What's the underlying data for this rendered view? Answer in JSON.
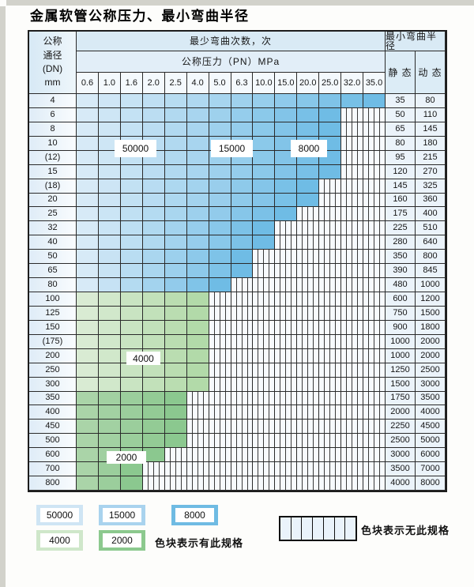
{
  "page": {
    "title": "金属软管公称压力、最小弯曲半径"
  },
  "table": {
    "header": {
      "dn_label": "公称\n通径\n(DN)\nmm",
      "cycles_label": "最少弯曲次数，次",
      "pressure_label": "公称压力（PN）MPa",
      "radius_label": "最小弯曲半径",
      "static_label": "静 态",
      "dynamic_label": "动 态",
      "pressure_columns": [
        "0.6",
        "1.0",
        "1.6",
        "2.0",
        "2.5",
        "4.0",
        "5.0",
        "6.3",
        "10.0",
        "15.0",
        "20.0",
        "25.0",
        "32.0",
        "35.0"
      ]
    },
    "rows": [
      {
        "dn": "4",
        "colored": 14,
        "zone": "blue",
        "static": "35",
        "dynamic": "80"
      },
      {
        "dn": "6",
        "colored": 12,
        "zone": "blue",
        "static": "50",
        "dynamic": "110"
      },
      {
        "dn": "8",
        "colored": 12,
        "zone": "blue",
        "static": "65",
        "dynamic": "145"
      },
      {
        "dn": "10",
        "colored": 12,
        "zone": "blue",
        "static": "80",
        "dynamic": "180"
      },
      {
        "dn": "(12)",
        "colored": 12,
        "zone": "blue",
        "static": "95",
        "dynamic": "215"
      },
      {
        "dn": "15",
        "colored": 12,
        "zone": "blue",
        "static": "120",
        "dynamic": "270"
      },
      {
        "dn": "(18)",
        "colored": 11,
        "zone": "blue",
        "static": "145",
        "dynamic": "325"
      },
      {
        "dn": "20",
        "colored": 11,
        "zone": "blue",
        "static": "160",
        "dynamic": "360"
      },
      {
        "dn": "25",
        "colored": 10,
        "zone": "blue",
        "static": "175",
        "dynamic": "400"
      },
      {
        "dn": "32",
        "colored": 9,
        "zone": "blue",
        "static": "225",
        "dynamic": "510"
      },
      {
        "dn": "40",
        "colored": 9,
        "zone": "blue",
        "static": "280",
        "dynamic": "640"
      },
      {
        "dn": "50",
        "colored": 8,
        "zone": "blue",
        "static": "350",
        "dynamic": "800"
      },
      {
        "dn": "65",
        "colored": 8,
        "zone": "blue",
        "static": "390",
        "dynamic": "845"
      },
      {
        "dn": "80",
        "colored": 7,
        "zone": "blue",
        "static": "480",
        "dynamic": "1000"
      },
      {
        "dn": "100",
        "colored": 6,
        "zone": "green_4000",
        "static": "600",
        "dynamic": "1200"
      },
      {
        "dn": "125",
        "colored": 6,
        "zone": "green_4000",
        "static": "750",
        "dynamic": "1500"
      },
      {
        "dn": "150",
        "colored": 6,
        "zone": "green_4000",
        "static": "900",
        "dynamic": "1800"
      },
      {
        "dn": "(175)",
        "colored": 6,
        "zone": "green_4000",
        "static": "1000",
        "dynamic": "2000"
      },
      {
        "dn": "200",
        "colored": 6,
        "zone": "green_4000",
        "static": "1000",
        "dynamic": "2000"
      },
      {
        "dn": "250",
        "colored": 6,
        "zone": "green_4000",
        "static": "1250",
        "dynamic": "2500"
      },
      {
        "dn": "300",
        "colored": 6,
        "zone": "green_4000",
        "static": "1500",
        "dynamic": "3000"
      },
      {
        "dn": "350",
        "colored": 5,
        "zone": "green_2000",
        "static": "1750",
        "dynamic": "3500"
      },
      {
        "dn": "400",
        "colored": 5,
        "zone": "green_2000",
        "static": "2000",
        "dynamic": "4000"
      },
      {
        "dn": "450",
        "colored": 5,
        "zone": "green_2000",
        "static": "2250",
        "dynamic": "4500"
      },
      {
        "dn": "500",
        "colored": 5,
        "zone": "green_2000",
        "static": "2500",
        "dynamic": "5000"
      },
      {
        "dn": "600",
        "colored": 4,
        "zone": "green_2000",
        "static": "3000",
        "dynamic": "6000"
      },
      {
        "dn": "700",
        "colored": 3,
        "zone": "green_2000",
        "static": "3500",
        "dynamic": "7000"
      },
      {
        "dn": "800",
        "colored": 3,
        "zone": "green_2000",
        "static": "4000",
        "dynamic": "8000"
      }
    ],
    "region_labels": [
      "50000",
      "15000",
      "8000",
      "4000",
      "2000"
    ]
  },
  "legend": {
    "swatches": [
      {
        "label": "50000",
        "color": "#cfe5f4"
      },
      {
        "label": "15000",
        "color": "#a9d3ee"
      },
      {
        "label": "8000",
        "color": "#6fbbe3"
      },
      {
        "label": "4000",
        "color": "#cfe7ca"
      },
      {
        "label": "2000",
        "color": "#8cc98e"
      }
    ],
    "has_spec_text": "色块表示有此规格",
    "no_spec_text": "色块表示无此规格"
  },
  "colors": {
    "zones": {
      "blue": [
        "#d7eaf7",
        "#6fbce5"
      ],
      "green_4000": [
        "#d9ebd3",
        "#b2daa9"
      ],
      "green_2000": [
        "#aad4a8",
        "#8bc88f"
      ]
    },
    "border": "#2a2a2a",
    "hatch_line": "#3a3a3a"
  }
}
